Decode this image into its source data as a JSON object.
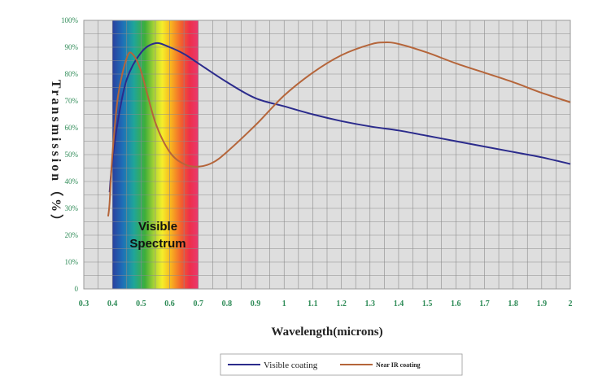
{
  "chart_data": {
    "type": "line",
    "xlabel": "Wavelength(microns)",
    "ylabel": "Transmission（%）",
    "xlim": [
      0.3,
      2.0
    ],
    "ylim": [
      0,
      100
    ],
    "x_ticks": [
      "0.3",
      "0.4",
      "0.5",
      "0.6",
      "0.7",
      "0.8",
      "0.9",
      "1",
      "1.1",
      "1.2",
      "1.3",
      "1.4",
      "1.5",
      "1.6",
      "1.7",
      "1.8",
      "1.9",
      "2"
    ],
    "y_ticks": [
      "0",
      "10%",
      "20%",
      "30%",
      "40%",
      "50%",
      "60%",
      "70%",
      "80%",
      "90%",
      "100%"
    ],
    "grid": true,
    "legend_position": "bottom",
    "band": {
      "label_line1": "Visible",
      "label_line2": "Spectrum",
      "x_range": [
        0.4,
        0.7
      ]
    },
    "series": [
      {
        "name": "Visible coating",
        "color": "#2b2b8c",
        "points": [
          [
            0.39,
            36
          ],
          [
            0.4,
            48
          ],
          [
            0.42,
            63
          ],
          [
            0.45,
            78
          ],
          [
            0.5,
            88
          ],
          [
            0.55,
            91.5
          ],
          [
            0.6,
            90
          ],
          [
            0.65,
            87.5
          ],
          [
            0.7,
            84
          ],
          [
            0.8,
            77
          ],
          [
            0.9,
            71
          ],
          [
            1.0,
            68
          ],
          [
            1.1,
            65
          ],
          [
            1.2,
            62.5
          ],
          [
            1.3,
            60.5
          ],
          [
            1.4,
            59
          ],
          [
            1.5,
            57
          ],
          [
            1.6,
            55
          ],
          [
            1.7,
            53
          ],
          [
            1.8,
            51
          ],
          [
            1.9,
            49
          ],
          [
            2.0,
            46.5
          ]
        ]
      },
      {
        "name": "Near IR coating",
        "color": "#b5653a",
        "points": [
          [
            0.385,
            27
          ],
          [
            0.39,
            32
          ],
          [
            0.4,
            50
          ],
          [
            0.42,
            72
          ],
          [
            0.45,
            86
          ],
          [
            0.47,
            87.5
          ],
          [
            0.5,
            81
          ],
          [
            0.55,
            62
          ],
          [
            0.6,
            51
          ],
          [
            0.65,
            46.5
          ],
          [
            0.7,
            45.5
          ],
          [
            0.75,
            47
          ],
          [
            0.8,
            51
          ],
          [
            0.9,
            61
          ],
          [
            1.0,
            72
          ],
          [
            1.1,
            80.5
          ],
          [
            1.2,
            87
          ],
          [
            1.3,
            91
          ],
          [
            1.35,
            91.8
          ],
          [
            1.4,
            91.2
          ],
          [
            1.5,
            88
          ],
          [
            1.6,
            84
          ],
          [
            1.7,
            80.5
          ],
          [
            1.8,
            77
          ],
          [
            1.9,
            73
          ],
          [
            2.0,
            69.5
          ]
        ]
      }
    ]
  }
}
